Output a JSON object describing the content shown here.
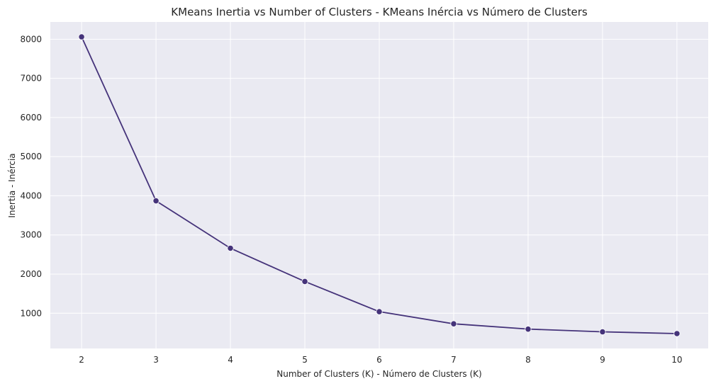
{
  "chart_data": {
    "type": "line",
    "title": "KMeans Inertia vs Number of Clusters - KMeans Inércia vs Número de Clusters",
    "xlabel": "Number of Clusters (K) - Número de Clusters (K)",
    "ylabel": "Inertia - Inércia",
    "x": [
      2,
      3,
      4,
      5,
      6,
      7,
      8,
      9,
      10
    ],
    "series": [
      {
        "values": [
          8060,
          3870,
          2660,
          1810,
          1040,
          730,
          595,
          525,
          480
        ]
      }
    ],
    "xlim": [
      1.58,
      10.42
    ],
    "ylim": [
      100,
      8440
    ],
    "xticks": [
      2,
      3,
      4,
      5,
      6,
      7,
      8,
      9,
      10
    ],
    "yticks": [
      1000,
      2000,
      3000,
      4000,
      5000,
      6000,
      7000,
      8000
    ],
    "grid": true,
    "legend": "none",
    "colors": {
      "line": "#45337a",
      "marker": "#45337a",
      "plot_background": "#eaeaf2",
      "grid": "#ffffff"
    }
  }
}
